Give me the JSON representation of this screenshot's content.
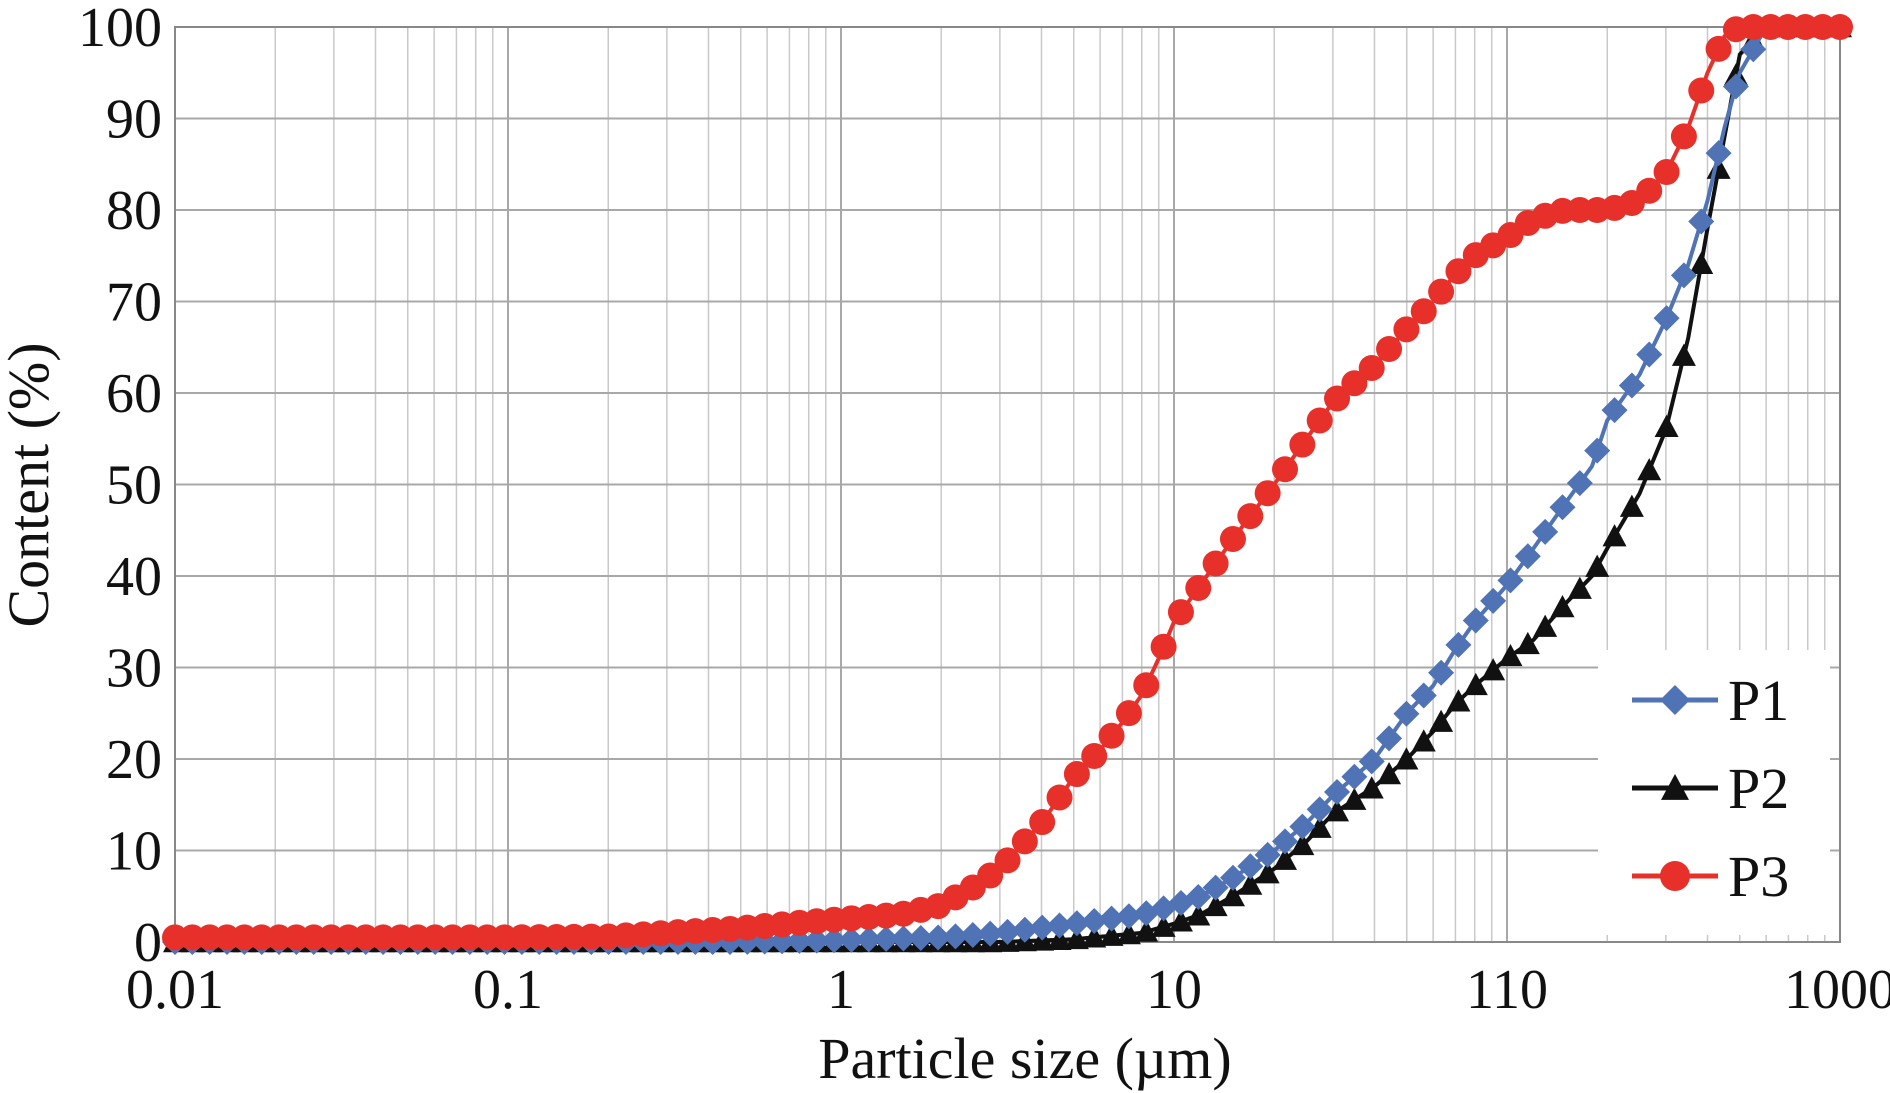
{
  "chart_data": {
    "type": "line",
    "title": "",
    "xlabel": "Particle size (µm)",
    "ylabel": "Content (%)",
    "x_scale": "log",
    "xlim": [
      0.01,
      1000
    ],
    "ylim": [
      0,
      100
    ],
    "x_tick_labels": [
      "0.01",
      "0.1",
      "1",
      "10",
      "110",
      "1000"
    ],
    "y_tick_labels": [
      "0",
      "10",
      "20",
      "30",
      "40",
      "50",
      "60",
      "70",
      "80",
      "90",
      "100"
    ],
    "grid": true,
    "legend_position": "bottom-right",
    "series": [
      {
        "name": "P1",
        "color": "#4f73b5",
        "marker": "diamond",
        "x": [
          0.01,
          0.1,
          0.5,
          1,
          2,
          3,
          5,
          8,
          10,
          12,
          15,
          20,
          25,
          30,
          40,
          50,
          60,
          70,
          80,
          100,
          120,
          150,
          180,
          200,
          250,
          300,
          350,
          400,
          450,
          500,
          600,
          700,
          800,
          1000
        ],
        "y": [
          0,
          0,
          0,
          0.2,
          0.5,
          1,
          2,
          3,
          4,
          5,
          7,
          10,
          13,
          16,
          20,
          25,
          28,
          32,
          35,
          39,
          43,
          48,
          52,
          57,
          62,
          68,
          74,
          81,
          89,
          95,
          100,
          100,
          100,
          100
        ]
      },
      {
        "name": "P2",
        "color": "#111111",
        "marker": "triangle",
        "x": [
          0.01,
          0.1,
          0.5,
          1,
          2,
          3,
          5,
          8,
          10,
          12,
          15,
          20,
          25,
          30,
          40,
          50,
          60,
          70,
          80,
          100,
          120,
          150,
          180,
          200,
          250,
          300,
          350,
          400,
          450,
          500,
          600,
          700,
          800,
          1000
        ],
        "y": [
          0,
          0,
          0,
          0,
          0,
          0,
          0.3,
          1,
          2,
          3,
          5,
          8,
          11,
          14,
          17,
          20,
          23,
          26,
          28,
          31,
          33,
          37,
          40,
          43,
          49,
          56,
          66,
          78,
          88,
          97,
          100,
          100,
          100,
          100
        ]
      },
      {
        "name": "P3",
        "color": "#e8302a",
        "marker": "circle",
        "x": [
          0.01,
          0.05,
          0.1,
          0.2,
          0.3,
          0.5,
          0.7,
          1,
          1.5,
          2,
          2.5,
          3,
          4,
          5,
          6,
          7,
          8,
          9,
          10,
          12,
          15,
          20,
          25,
          30,
          40,
          50,
          60,
          70,
          80,
          100,
          120,
          150,
          180,
          200,
          250,
          300,
          350,
          400,
          450,
          500,
          600,
          700,
          800,
          1000
        ],
        "y": [
          0.5,
          0.5,
          0.5,
          0.6,
          1,
          1.5,
          2,
          2.5,
          3,
          4,
          6,
          8,
          13,
          18,
          21,
          24,
          27,
          31,
          35,
          39,
          44,
          50,
          55,
          59,
          63,
          67,
          70,
          73,
          75,
          77,
          79,
          80,
          80,
          80,
          81,
          84,
          89,
          95,
          99,
          100,
          100,
          100,
          100,
          100
        ]
      }
    ]
  }
}
